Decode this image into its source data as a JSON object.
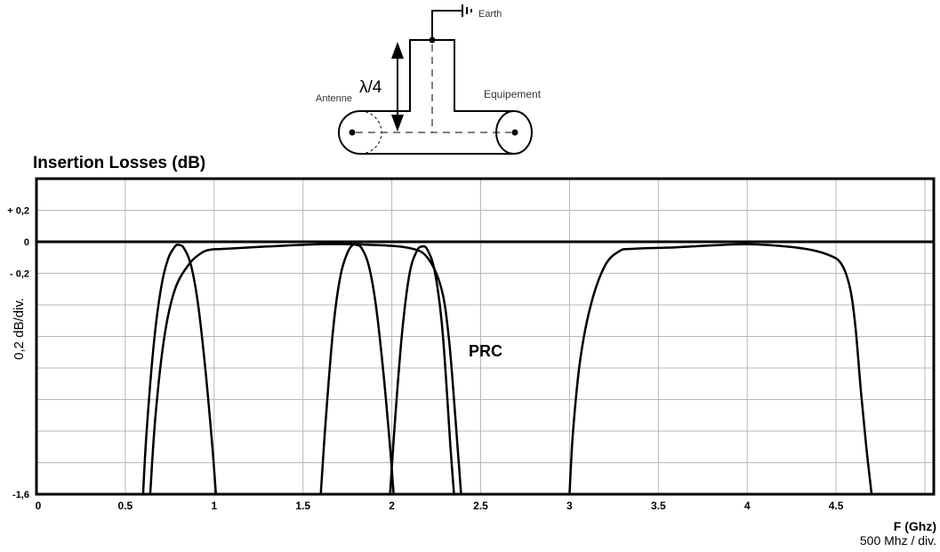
{
  "diagram": {
    "earth_label": "Earth",
    "lambda_label": "λ/4",
    "antenna_label": "Antenne",
    "equipment_label": "Equipement"
  },
  "chart_data": {
    "type": "line",
    "title": "Insertion Losses (dB)",
    "ylabel": "0,2 dB/div.",
    "xlabel": "F (Ghz)",
    "xlabel_sub": "500 Mhz / div.",
    "annotation": "PRC",
    "xlim": [
      0,
      5.05
    ],
    "ylim": [
      -1.6,
      0.4
    ],
    "grid": true,
    "x_ticks": [
      0,
      0.5,
      1,
      1.5,
      2,
      2.5,
      3,
      3.5,
      4,
      4.5
    ],
    "x_tick_labels": [
      "0",
      "0.5",
      "1",
      "1.5",
      "2",
      "2.5",
      "3",
      "3.5",
      "4",
      "4.5"
    ],
    "y_ticks": [
      0.2,
      0,
      -0.2,
      -1.6
    ],
    "y_tick_labels": [
      "+ 0,2",
      "0",
      "- 0,2",
      "-1,6"
    ],
    "reference_line": 0,
    "series": [
      {
        "x": [
          0.6,
          0.62,
          0.66,
          0.7,
          0.74,
          0.78,
          0.8,
          0.83,
          0.87,
          0.91,
          0.95,
          0.99,
          1.01
        ],
        "y": [
          -1.6,
          -1.2,
          -0.65,
          -0.3,
          -0.11,
          -0.03,
          -0.02,
          -0.04,
          -0.15,
          -0.4,
          -0.8,
          -1.3,
          -1.6
        ]
      },
      {
        "x": [
          0.64,
          0.67,
          0.72,
          0.78,
          0.86,
          0.93,
          0.98,
          1.05,
          1.3,
          1.6,
          1.9,
          2.1,
          2.2,
          2.28,
          2.32,
          2.35,
          2.37,
          2.39
        ],
        "y": [
          -1.6,
          -1.1,
          -0.6,
          -0.3,
          -0.14,
          -0.07,
          -0.05,
          -0.045,
          -0.03,
          -0.015,
          -0.02,
          -0.04,
          -0.1,
          -0.3,
          -0.6,
          -1.0,
          -1.3,
          -1.6
        ]
      },
      {
        "x": [
          1.6,
          1.63,
          1.67,
          1.71,
          1.75,
          1.78,
          1.8,
          1.83,
          1.87,
          1.91,
          1.95,
          1.99,
          2.01
        ],
        "y": [
          -1.6,
          -1.1,
          -0.55,
          -0.22,
          -0.07,
          -0.02,
          -0.02,
          -0.04,
          -0.15,
          -0.4,
          -0.8,
          -1.3,
          -1.6
        ]
      },
      {
        "x": [
          1.99,
          2.02,
          2.06,
          2.1,
          2.14,
          2.17,
          2.2,
          2.24,
          2.28,
          2.31,
          2.33,
          2.35
        ],
        "y": [
          -1.6,
          -1.1,
          -0.55,
          -0.2,
          -0.06,
          -0.03,
          -0.05,
          -0.18,
          -0.5,
          -0.95,
          -1.3,
          -1.6
        ]
      },
      {
        "x": [
          3.0,
          3.02,
          3.06,
          3.12,
          3.2,
          3.28,
          3.35,
          3.6,
          4.0,
          4.3,
          4.45,
          4.53,
          4.58,
          4.61,
          4.64,
          4.67,
          4.7
        ],
        "y": [
          -1.6,
          -1.2,
          -0.75,
          -0.4,
          -0.15,
          -0.06,
          -0.045,
          -0.035,
          -0.015,
          -0.04,
          -0.08,
          -0.14,
          -0.3,
          -0.55,
          -0.95,
          -1.3,
          -1.6
        ]
      }
    ]
  }
}
